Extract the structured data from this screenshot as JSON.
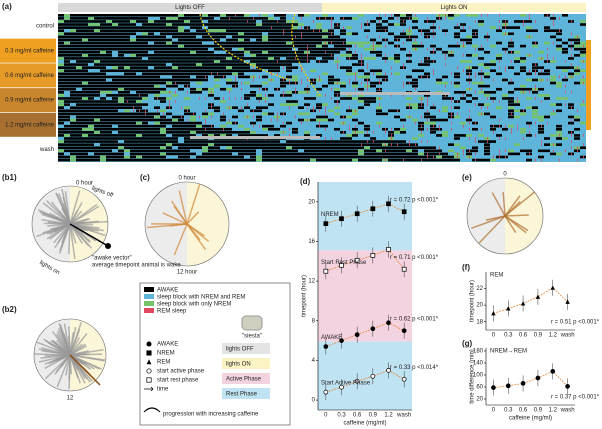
{
  "panel_a": {
    "label": "(a)",
    "lights_off": "Lights OFF",
    "lights_on": "Lights ON",
    "rows": [
      "control",
      "0.3 mg/ml caffeine",
      "0.6 mg/ml caffeine",
      "0.9 mg/ml caffeine",
      "1.2 mg/ml caffeine",
      "wash"
    ]
  },
  "panel_b1": {
    "label": "(b1)",
    "zero": "0 hour",
    "off": "lights off",
    "on": "lights on",
    "vector": "\"awake vector\"",
    "vector_note": "average timepoint animal is wake"
  },
  "panel_b2": {
    "label": "(b2)",
    "twelve": "12"
  },
  "panel_c": {
    "label": "(c)",
    "zero": "0 hour",
    "twelve": "12 hour"
  },
  "panel_e": {
    "label": "(e)",
    "zero": "0"
  },
  "legend": {
    "items": [
      {
        "label": "AWAKE",
        "color": "#000000"
      },
      {
        "label": "sleep block with NREM and REM",
        "color": "#5fb4d9"
      },
      {
        "label": "sleep block with only NREM",
        "color": "#77c36a"
      },
      {
        "label": "REM sleep",
        "color": "#e0485f"
      }
    ],
    "siesta": "\"siesta\"",
    "markers": [
      "AWAKE",
      "NREM",
      "REM",
      "start active phase",
      "start rest phase",
      "time"
    ],
    "boxes": [
      {
        "label": "lights OFF",
        "color": "#e4e4e4"
      },
      {
        "label": "lights ON",
        "color": "#fbf3c4"
      },
      {
        "label": "Active Phase",
        "color": "#f3d3e0"
      },
      {
        "label": "Rest Phase",
        "color": "#bfe3f2"
      }
    ],
    "progression": "progression with increasing caffeine"
  },
  "chart_data": [
    {
      "label": "(d)",
      "type": "line",
      "ylabel": "timepoint (hour)",
      "xlabel": "caffeine (mg/ml)",
      "categories": [
        "0",
        "0.3",
        "0.6",
        "0.9",
        "1.2",
        "wash"
      ],
      "ylim": [
        -1,
        22
      ],
      "yticks": [
        0,
        4,
        8,
        12,
        16,
        20
      ],
      "series": [
        {
          "name": "NREM",
          "color": "#000000",
          "marker": "square",
          "values": [
            17.8,
            18.3,
            18.8,
            19.3,
            19.8,
            19
          ],
          "stats": "r = 0.72 p <0.001*"
        },
        {
          "name": "Start Rest Phase",
          "color": "#000000",
          "marker": "open-square",
          "values": [
            13,
            13.6,
            14.1,
            14.6,
            15.2,
            13.2
          ],
          "stats": "r = 0.71 p <0.001*"
        },
        {
          "name": "AWAKE",
          "color": "#000000",
          "marker": "circle",
          "values": [
            5.4,
            6,
            6.6,
            7.2,
            7.8,
            7
          ],
          "stats": "r = 0.62 p <0.001*"
        },
        {
          "name": "Start Active Phase",
          "color": "#000000",
          "marker": "open-circle",
          "values": [
            0.8,
            1.3,
            1.9,
            2.4,
            3,
            2.1
          ],
          "stats": "r = 0.33 p <0.014*"
        }
      ]
    },
    {
      "label": "(f)",
      "type": "line",
      "ylabel": "timepoint (hour)",
      "title": "REM",
      "categories": [
        "0",
        "0.3",
        "0.6",
        "0.9",
        "1.2",
        "wash"
      ],
      "ylim": [
        17,
        24
      ],
      "yticks": [
        18,
        20,
        22
      ],
      "series": [
        {
          "name": "REM",
          "color": "#000000",
          "marker": "triangle",
          "values": [
            19,
            19.6,
            20.2,
            21,
            22.1,
            20.4
          ],
          "stats": "r = 0.51 p <0.001*"
        }
      ]
    },
    {
      "label": "(g)",
      "type": "line",
      "ylabel": "time difference (min)",
      "xlabel": "caffeine (mg/ml)",
      "title": "NREM→REM",
      "categories": [
        "0",
        "0.3",
        "0.6",
        "0.9",
        "1.2",
        "wash"
      ],
      "ylim": [
        0,
        190
      ],
      "yticks": [
        20,
        60,
        100,
        140,
        180
      ],
      "series": [
        {
          "name": "NREM→REM",
          "color": "#000000",
          "marker": "circle",
          "values": [
            58,
            64,
            72,
            90,
            112,
            62
          ],
          "stats": "r = 0.37 p <0.001*"
        }
      ]
    }
  ]
}
